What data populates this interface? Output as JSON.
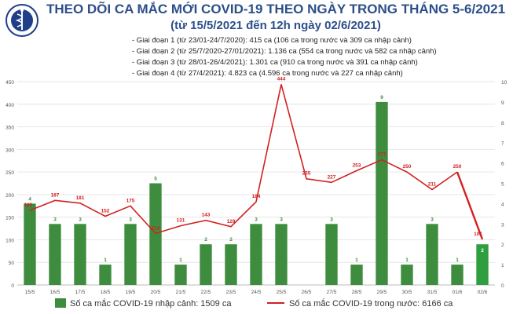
{
  "header": {
    "logo_text": "BỘ Y TẾ",
    "title": "THEO DÕI CA MẮC MỚI COVID-19 THEO NGÀY TRONG THÁNG 5-6/2021",
    "subtitle": "(từ 15/5/2021 đến 12h ngày 02/6/2021)"
  },
  "notes": [
    "- Giai đoạn 1 (từ 23/01-24/7/2020): 415 ca (106 ca trong nước và 309 ca nhập cảnh)",
    "- Giai đoạn 2 (từ 25/7/2020-27/01/2021): 1.136 ca (554 ca trong nước và 582 ca nhập cảnh)",
    "- Giai đoạn 3 (từ 28/01-26/4/2021): 1.301 ca (910 ca trong nước và 391 ca nhập cảnh)",
    "- Giai đoạn 4 (từ 27/4/2021): 4.823 ca (4.596 ca trong nước và 227 ca nhập cảnh)"
  ],
  "colors": {
    "bar": "#3e8d3e",
    "bar_last": "#2e9e3e",
    "line": "#d32020",
    "title": "#2d4f8a",
    "grid": "#e6e6e6"
  },
  "chart_data": {
    "type": "bar+line",
    "categories": [
      "15/5",
      "16/5",
      "17/5",
      "18/5",
      "19/5",
      "20/5",
      "21/5",
      "22/5",
      "23/5",
      "24/5",
      "25/5",
      "26/5",
      "27/5",
      "28/5",
      "29/5",
      "30/5",
      "31/5",
      "01/6",
      "02/6"
    ],
    "series": [
      {
        "name": "Số ca mắc COVID-19 nhập cảnh: 1509 ca",
        "type": "bar",
        "axis": "right",
        "values": [
          4,
          3,
          3,
          1,
          3,
          5,
          1,
          2,
          2,
          3,
          3,
          0,
          3,
          1,
          9,
          1,
          3,
          1,
          2
        ]
      },
      {
        "name": "Số ca mắc COVID-19 trong nước: 6166 ca",
        "type": "line",
        "axis": "left",
        "values": [
          165,
          187,
          181,
          152,
          175,
          114,
          131,
          143,
          129,
          184,
          444,
          235,
          227,
          253,
          277,
          250,
          211,
          250,
          101
        ]
      }
    ],
    "left_axis": {
      "ylim": [
        0,
        450
      ],
      "ticks": [
        0,
        50,
        100,
        150,
        200,
        250,
        300,
        350,
        400,
        450
      ]
    },
    "right_axis": {
      "ylim": [
        0,
        10
      ],
      "ticks": [
        0,
        1,
        2,
        3,
        4,
        5,
        6,
        7,
        8,
        9,
        10
      ]
    },
    "grid": true,
    "legend_position": "bottom"
  }
}
